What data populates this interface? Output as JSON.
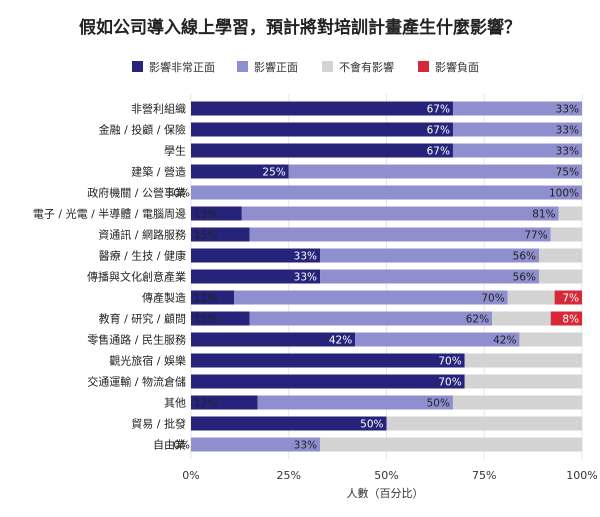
{
  "chart_data": {
    "type": "bar",
    "orientation": "horizontal",
    "stacked": true,
    "title": "假如公司導入線上學習，預計將對培訓計畫產生什麼影響？",
    "xlabel": "人數（百分比）",
    "ylabel": "",
    "xlim": [
      0,
      100
    ],
    "x_ticks": [
      "0%",
      "25%",
      "50%",
      "75%",
      "100%"
    ],
    "legend_position": "top",
    "grid": true,
    "categories": [
      "非營利組織",
      "金融 / 投顧 / 保險",
      "學生",
      "建築 / 營造",
      "政府機關 / 公營事業",
      "電子 / 光電 / 半導體 / 電腦周邊",
      "資通訊 / 網路服務",
      "醫療 / 生技 / 健康",
      "傳播與文化創意產業",
      "傳產製造",
      "教育 / 研究 / 顧問",
      "零售通路 / 民生服務",
      "觀光旅宿 / 娛樂",
      "交通運輸 / 物流倉儲",
      "其他",
      "貿易 / 批發",
      "自由業"
    ],
    "series": [
      {
        "name": "影響非常正面",
        "color": "#25237a",
        "values": [
          67,
          67,
          67,
          25,
          0,
          13,
          15,
          33,
          33,
          11,
          15,
          42,
          70,
          70,
          17,
          50,
          0
        ],
        "labels": [
          "67%",
          "67%",
          "67%",
          "25%",
          "0%",
          "13%",
          "15%",
          "33%",
          "33%",
          "11%",
          "15%",
          "42%",
          "70%",
          "70%",
          "17%",
          "50%",
          "0%"
        ]
      },
      {
        "name": "影響正面",
        "color": "#8f8fcf",
        "values": [
          33,
          33,
          33,
          75,
          100,
          81,
          77,
          56,
          56,
          70,
          62,
          42,
          0,
          0,
          50,
          0,
          33
        ],
        "labels": [
          "33%",
          "33%",
          "33%",
          "75%",
          "100%",
          "81%",
          "77%",
          "56%",
          "56%",
          "70%",
          "62%",
          "42%",
          "",
          "",
          "50%",
          "",
          "33%"
        ]
      },
      {
        "name": "不會有影響",
        "color": "#d3d3d3",
        "values": [
          0,
          0,
          0,
          0,
          0,
          6,
          8,
          11,
          11,
          12,
          15,
          16,
          30,
          30,
          33,
          50,
          67
        ],
        "labels": [
          "",
          "",
          "",
          "",
          "",
          "",
          "",
          "",
          "",
          "",
          "",
          "",
          "",
          "",
          "",
          "",
          ""
        ]
      },
      {
        "name": "影響負面",
        "color": "#d62839",
        "values": [
          0,
          0,
          0,
          0,
          0,
          0,
          0,
          0,
          0,
          7,
          8,
          0,
          0,
          0,
          0,
          0,
          0
        ],
        "labels": [
          "",
          "",
          "",
          "",
          "",
          "",
          "",
          "",
          "",
          "7%",
          "8%",
          "",
          "",
          "",
          "",
          "",
          ""
        ]
      }
    ]
  }
}
